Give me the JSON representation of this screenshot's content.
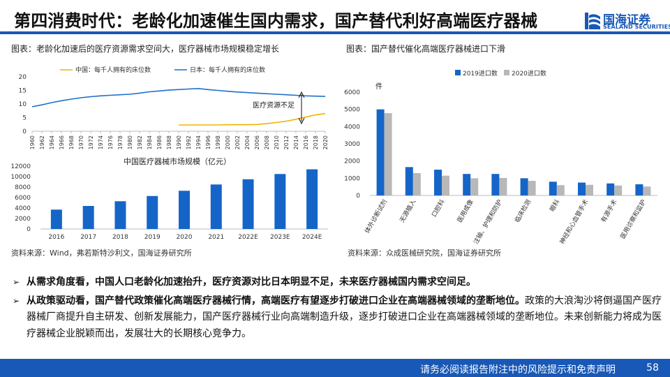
{
  "slide": {
    "title": "第四消费时代：老龄化加速催生国内需求，国产替代利好高端医疗器械"
  },
  "logo": {
    "name": "国海证券",
    "sub": "SEALAND SECURITIES"
  },
  "left_panel": {
    "caption": "图表：老龄化加速后的医疗资源需求空间大，医疗器械市场规模稳定增长",
    "source": "资料来源：Wind，弗若斯特沙利文，国海证券研究所"
  },
  "right_panel": {
    "caption": "图表：国产替代催化高端医疗器械进口下滑",
    "source": "资料来源：众成医械研究院，国海证券研究所"
  },
  "chart_data": [
    {
      "type": "line",
      "title": "",
      "x": [
        1960,
        1962,
        1964,
        1966,
        1968,
        1970,
        1972,
        1974,
        1976,
        1978,
        1980,
        1982,
        1984,
        1986,
        1988,
        1990,
        1992,
        1994,
        1996,
        1998,
        2000,
        2002,
        2004,
        2006,
        2008,
        2010,
        2012,
        2014,
        2016,
        2018,
        2020
      ],
      "xlabel": "",
      "ylabel": "",
      "ylim": [
        0,
        20
      ],
      "yticks": [
        0,
        5,
        10,
        15,
        20
      ],
      "series": [
        {
          "name": "中国：每千人拥有的床位数",
          "color": "#f0b400",
          "x": [
            1990,
            1992,
            1994,
            1996,
            1998,
            2000,
            2002,
            2004,
            2006,
            2008,
            2010,
            2012,
            2014,
            2016,
            2018,
            2020
          ],
          "values": [
            2.3,
            2.3,
            2.3,
            2.3,
            2.3,
            2.4,
            2.4,
            2.4,
            2.5,
            2.8,
            3.2,
            3.7,
            4.4,
            5.2,
            6.0,
            6.5
          ]
        },
        {
          "name": "日本：每千人拥有的床位数",
          "color": "#1f6fc8",
          "x": [
            1960,
            1962,
            1964,
            1966,
            1968,
            1970,
            1972,
            1974,
            1976,
            1978,
            1980,
            1982,
            1984,
            1986,
            1988,
            1990,
            1992,
            1994,
            1996,
            1998,
            2000,
            2002,
            2004,
            2006,
            2008,
            2010,
            2012,
            2014,
            2016,
            2018,
            2020
          ],
          "values": [
            9.0,
            9.7,
            10.5,
            11.2,
            11.8,
            12.3,
            12.7,
            13.0,
            13.2,
            13.4,
            13.6,
            14.0,
            14.5,
            14.8,
            15.1,
            15.3,
            15.5,
            15.7,
            15.3,
            15.0,
            14.7,
            14.4,
            14.2,
            14.0,
            13.8,
            13.6,
            13.4,
            13.2,
            13.0,
            12.9,
            12.8
          ]
        }
      ],
      "annotations": [
        "医疗资源不足"
      ]
    },
    {
      "type": "bar",
      "title": "中国医疗器械市场规模（亿元）",
      "categories": [
        "2016",
        "2017",
        "2018",
        "2019",
        "2020",
        "2021",
        "2022E",
        "2023E",
        "2024E"
      ],
      "values": [
        3700,
        4400,
        5300,
        6300,
        7300,
        8500,
        9500,
        10500,
        11400
      ],
      "ylim": [
        0,
        12000
      ],
      "yticks": [
        0,
        2000,
        4000,
        6000,
        8000,
        10000,
        12000
      ],
      "color": "#1565c8"
    },
    {
      "type": "bar",
      "title": "",
      "ylabel": "件",
      "categories": [
        "体外诊断试剂",
        "无源植入",
        "口腔科",
        "医用成像",
        "注输、护理和防护",
        "临床检测",
        "眼科",
        "神经和心血管手术",
        "有源手术",
        "医用诊察和监护"
      ],
      "series": [
        {
          "name": "2019进口数",
          "color": "#1565c8",
          "values": [
            5000,
            1650,
            1500,
            1250,
            1250,
            1000,
            800,
            750,
            700,
            650
          ]
        },
        {
          "name": "2020进口数",
          "color": "#b8b8b8",
          "values": [
            4780,
            1300,
            1150,
            1000,
            1020,
            850,
            600,
            620,
            580,
            520
          ]
        }
      ],
      "ylim": [
        0,
        6000
      ],
      "yticks": [
        0,
        1000,
        2000,
        3000,
        4000,
        5000,
        6000
      ]
    }
  ],
  "bullets": [
    {
      "lead": "从需求角度看，中国人口老龄化加速抬升，医疗资源对比日本明显不足，未来医疗器械国内需求空间足。",
      "rest": ""
    },
    {
      "lead": "从政策驱动看，国产替代政策催化高端医疗器械行情，高端医疗有望逐步打破进口企业在高端器械领域的垄断地位。",
      "rest": "政策的大浪淘沙将倒逼国产医疗器械厂商提升自主研发、创新发展能力，国产医疗器械行业向高端制造升级，逐步打破进口企业在高端器械领域的垄断地位。未来创新能力将成为医疗器械企业脱颖而出，发展壮大的长期核心竞争力。"
    }
  ],
  "footer": {
    "disclaimer": "请务必阅读报告附注中的风险提示和免责声明",
    "page": "58"
  },
  "colors": {
    "brand": "#1858b6",
    "china_line": "#f0b400",
    "japan_line": "#1f6fc8",
    "bar_2019": "#1565c8",
    "bar_2020": "#b8b8b8"
  }
}
